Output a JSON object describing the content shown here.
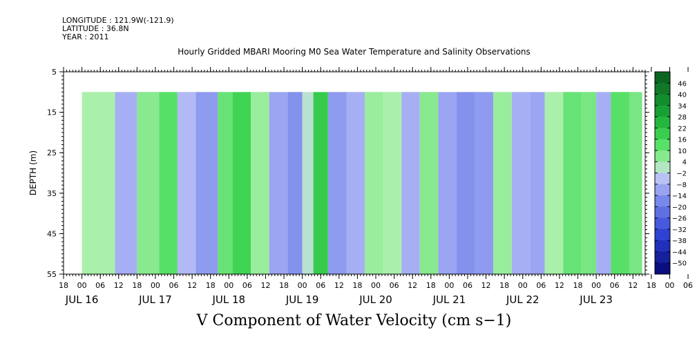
{
  "header": {
    "longitude": "LONGITUDE : 121.9W(-121.9)",
    "latitude": "LATITUDE : 36.8N",
    "year": "YEAR : 2011"
  },
  "chart_data": {
    "type": "heatmap",
    "title": "Hourly Gridded MBARI Mooring M0 Sea Water Temperature and Salinity Observations",
    "caption": "V Component of Water Velocity (cm s−1)",
    "ylabel": "DEPTH (m)",
    "ylim": [
      5,
      55
    ],
    "y_inverted": true,
    "y_ticks": [
      5,
      15,
      25,
      35,
      45,
      55
    ],
    "data_depth_range": [
      10,
      55
    ],
    "x_start": "2011-07-15T18:00",
    "x_end": "2011-07-23T16:00",
    "x_data_start": "2011-07-16T00:00",
    "x_data_end": "2011-07-23T15:00",
    "x_hour_labels": [
      "18",
      "00",
      "06",
      "12",
      "18",
      "00",
      "06",
      "12",
      "18",
      "00",
      "06",
      "12",
      "18",
      "00",
      "06",
      "12",
      "18",
      "00",
      "06",
      "12",
      "18",
      "00",
      "06",
      "12",
      "18",
      "00",
      "06",
      "12",
      "18",
      "00",
      "06",
      "12",
      "18",
      "00",
      "06",
      "12"
    ],
    "x_day_labels": [
      "JUL 16",
      "JUL 17",
      "JUL 18",
      "JUL 19",
      "JUL 20",
      "JUL 21",
      "JUL 22",
      "JUL 23"
    ],
    "colorbar": {
      "levels": [
        "46",
        "40",
        "34",
        "28",
        "22",
        "16",
        "10",
        "4",
        "−2",
        "−8",
        "−14",
        "−20",
        "−26",
        "−32",
        "−38",
        "−44",
        "−50"
      ],
      "vmin": -50,
      "vmax": 50
    },
    "bands": [
      {
        "day": 0.15,
        "value": 4
      },
      {
        "day": 0.45,
        "value": -6
      },
      {
        "day": 0.75,
        "value": 8
      },
      {
        "day": 1.05,
        "value": 14
      },
      {
        "day": 1.3,
        "value": -4
      },
      {
        "day": 1.55,
        "value": -10
      },
      {
        "day": 1.85,
        "value": 12
      },
      {
        "day": 2.05,
        "value": 18
      },
      {
        "day": 2.3,
        "value": 6
      },
      {
        "day": 2.55,
        "value": -8
      },
      {
        "day": 2.8,
        "value": -12
      },
      {
        "day": 3.0,
        "value": 2
      },
      {
        "day": 3.15,
        "value": 20
      },
      {
        "day": 3.35,
        "value": -10
      },
      {
        "day": 3.6,
        "value": -6
      },
      {
        "day": 3.85,
        "value": 6
      },
      {
        "day": 4.1,
        "value": 4
      },
      {
        "day": 4.35,
        "value": -6
      },
      {
        "day": 4.6,
        "value": 8
      },
      {
        "day": 4.85,
        "value": -8
      },
      {
        "day": 5.1,
        "value": -12
      },
      {
        "day": 5.35,
        "value": -10
      },
      {
        "day": 5.6,
        "value": 6
      },
      {
        "day": 5.85,
        "value": -6
      },
      {
        "day": 6.1,
        "value": -8
      },
      {
        "day": 6.3,
        "value": 4
      },
      {
        "day": 6.55,
        "value": 12
      },
      {
        "day": 6.8,
        "value": 10
      },
      {
        "day": 7.0,
        "value": -6
      },
      {
        "day": 7.2,
        "value": 14
      },
      {
        "day": 7.45,
        "value": 10
      }
    ]
  }
}
